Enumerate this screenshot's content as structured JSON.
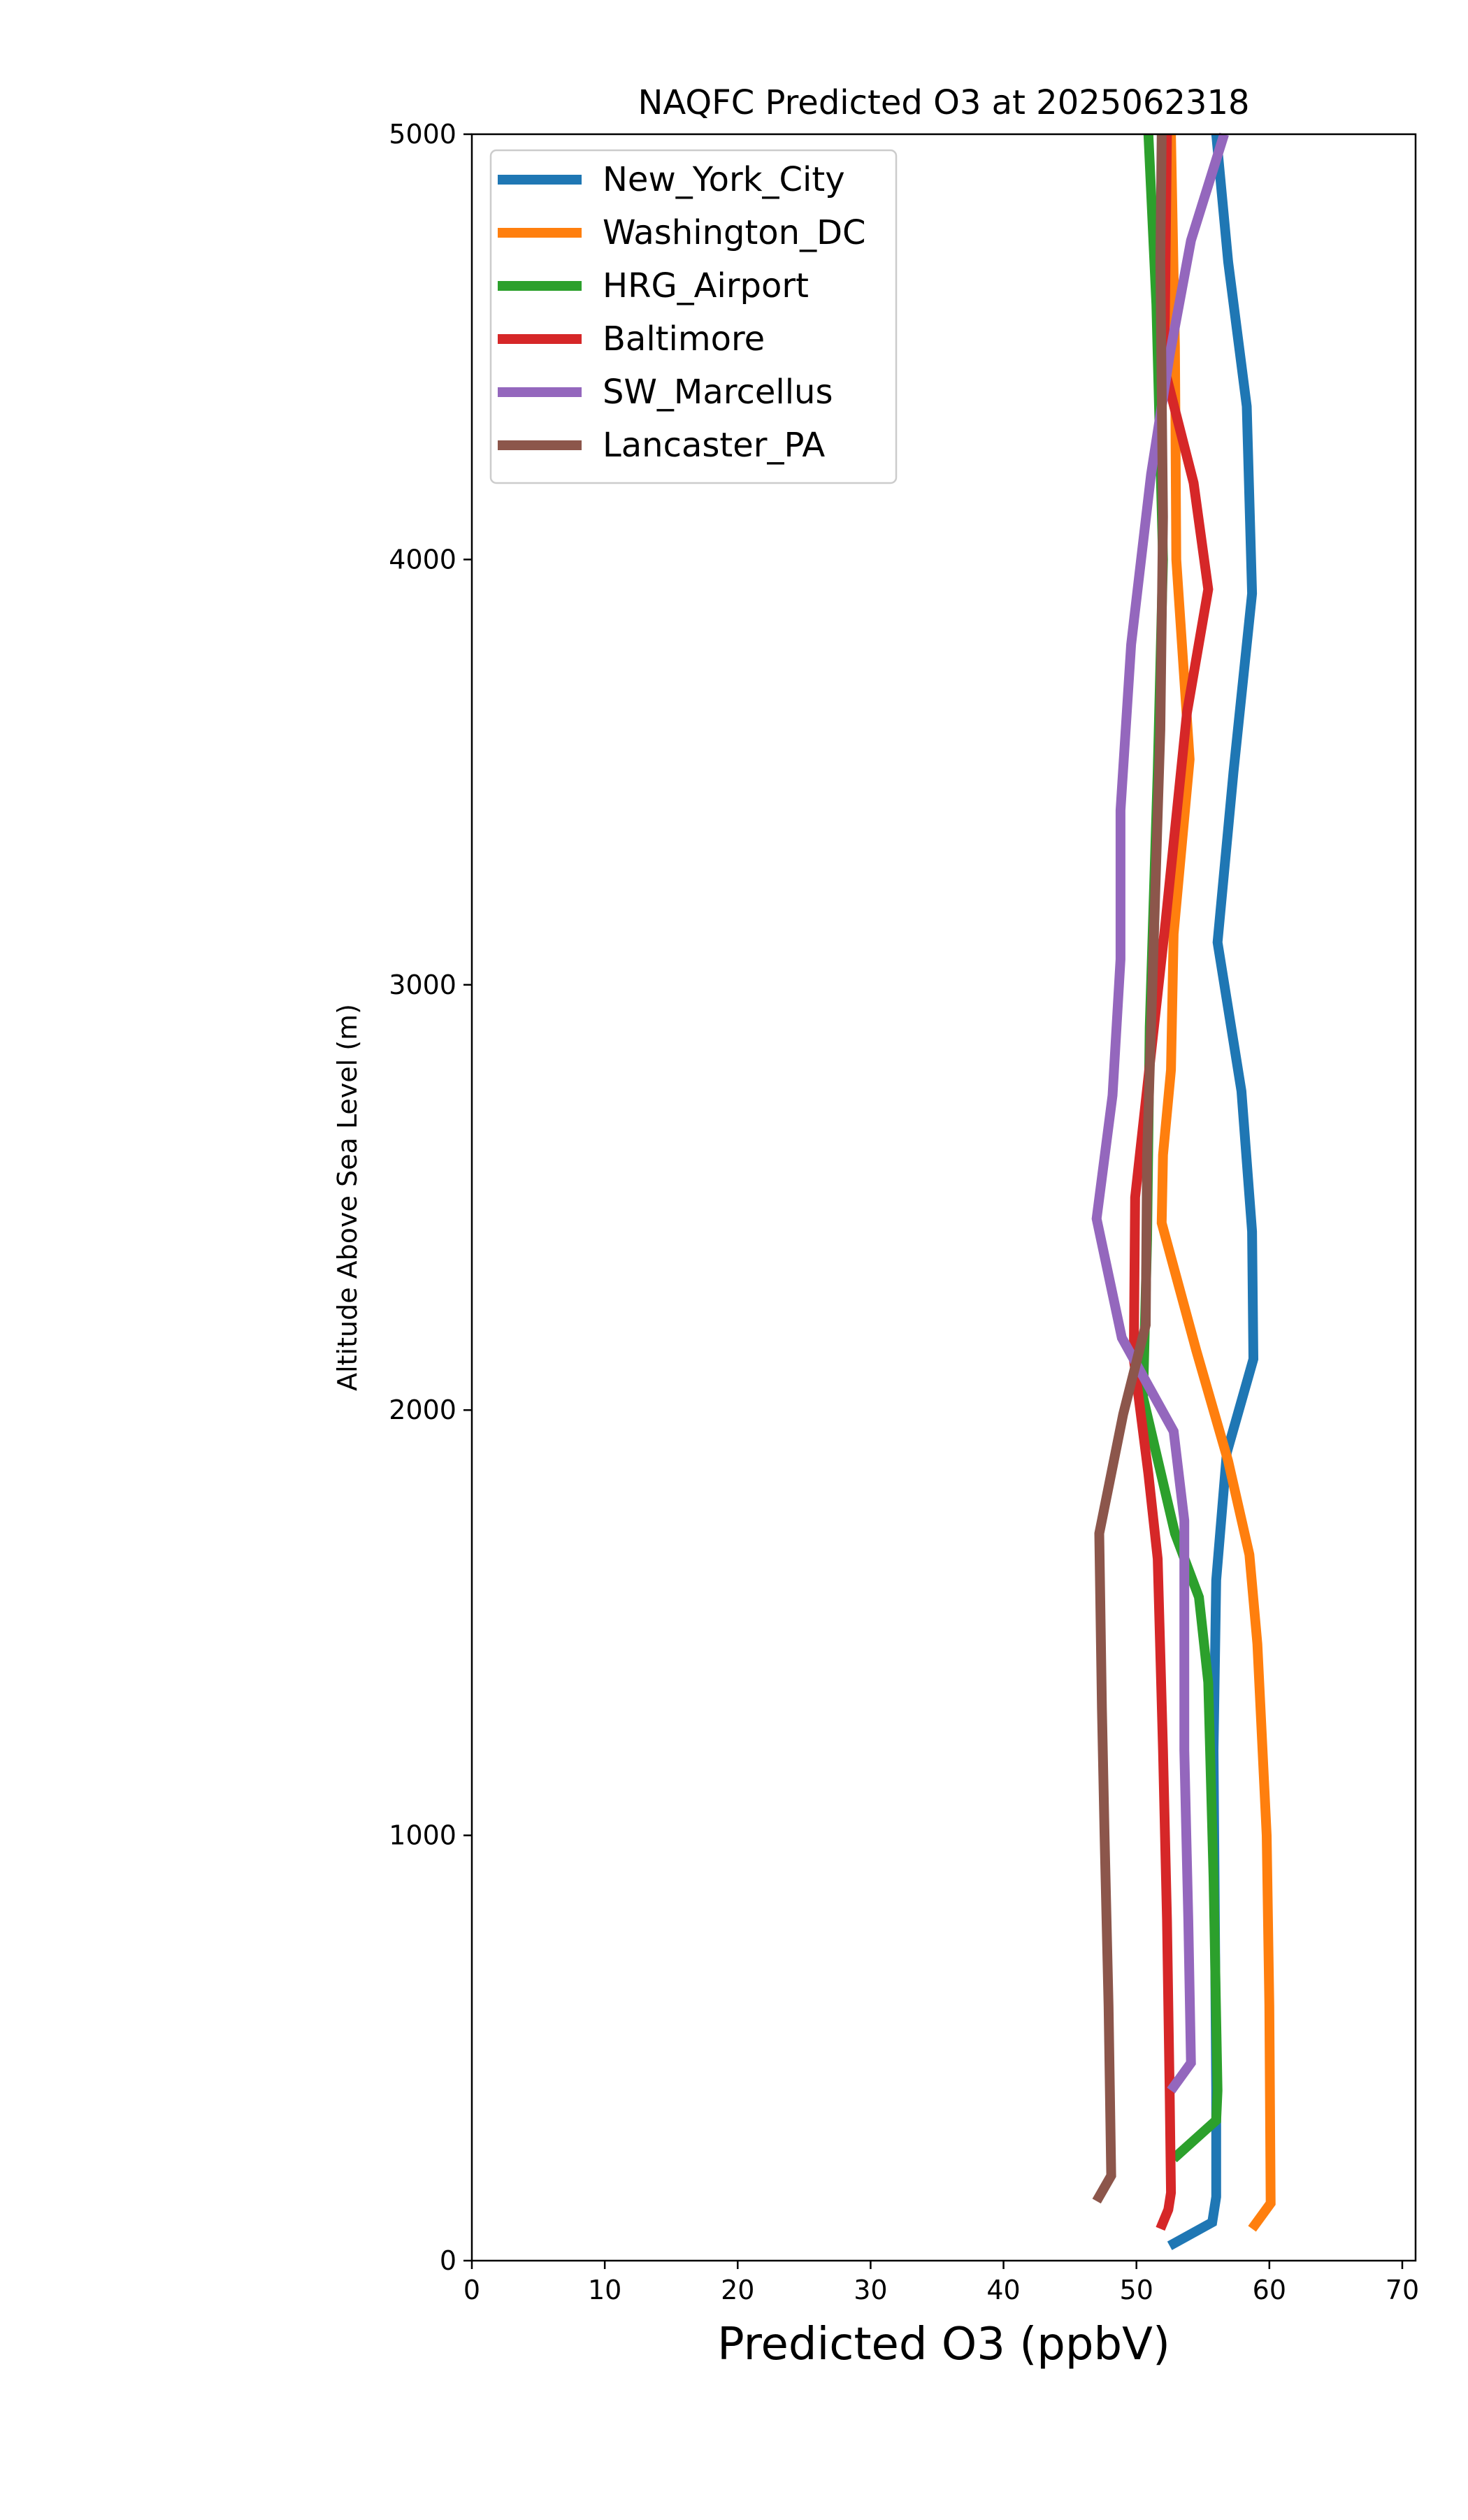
{
  "chart_data": {
    "type": "line",
    "title": "NAQFC Predicted O3 at 2025062318",
    "xlabel": "Predicted O3 (ppbV)",
    "ylabel": "Altitude Above Sea Level (m)",
    "xlim": [
      0,
      71
    ],
    "ylim": [
      0,
      5000
    ],
    "xticks": [
      0,
      10,
      20,
      30,
      40,
      50,
      60,
      70
    ],
    "yticks": [
      0,
      1000,
      2000,
      3000,
      4000,
      5000
    ],
    "grid": false,
    "legend_position": "top-left",
    "series": [
      {
        "name": "New_York_City",
        "color": "#1f77b4",
        "points": [
          [
            52.5,
            35
          ],
          [
            55.7,
            90
          ],
          [
            56.0,
            150
          ],
          [
            56.0,
            400
          ],
          [
            55.9,
            800
          ],
          [
            55.8,
            1200
          ],
          [
            56.0,
            1600
          ],
          [
            56.8,
            1900
          ],
          [
            58.8,
            2120
          ],
          [
            58.7,
            2420
          ],
          [
            57.9,
            2750
          ],
          [
            56.1,
            3100
          ],
          [
            57.3,
            3500
          ],
          [
            58.7,
            3920
          ],
          [
            58.3,
            4360
          ],
          [
            56.9,
            4700
          ],
          [
            56.0,
            5000
          ]
        ]
      },
      {
        "name": "Washington_DC",
        "color": "#ff7f0e",
        "points": [
          [
            58.7,
            75
          ],
          [
            60.1,
            135
          ],
          [
            60.0,
            600
          ],
          [
            59.8,
            1000
          ],
          [
            59.1,
            1450
          ],
          [
            58.5,
            1660
          ],
          [
            56.9,
            1880
          ],
          [
            54.5,
            2140
          ],
          [
            51.9,
            2440
          ],
          [
            52.0,
            2600
          ],
          [
            52.6,
            2800
          ],
          [
            52.8,
            3120
          ],
          [
            54.0,
            3530
          ],
          [
            53.0,
            4000
          ],
          [
            52.9,
            4500
          ],
          [
            52.6,
            5000
          ]
        ]
      },
      {
        "name": "HRG_Airport",
        "color": "#2ca02c",
        "points": [
          [
            52.8,
            240
          ],
          [
            56.0,
            330
          ],
          [
            56.1,
            400
          ],
          [
            55.8,
            900
          ],
          [
            55.4,
            1360
          ],
          [
            54.7,
            1560
          ],
          [
            52.9,
            1710
          ],
          [
            50.5,
            2030
          ],
          [
            50.8,
            2400
          ],
          [
            51.0,
            2900
          ],
          [
            51.6,
            3500
          ],
          [
            52.0,
            4000
          ],
          [
            51.5,
            4600
          ],
          [
            50.9,
            5000
          ]
        ]
      },
      {
        "name": "Baltimore",
        "color": "#d62728",
        "points": [
          [
            51.8,
            75
          ],
          [
            52.4,
            120
          ],
          [
            52.6,
            160
          ],
          [
            52.5,
            400
          ],
          [
            52.3,
            800
          ],
          [
            52.0,
            1200
          ],
          [
            51.6,
            1650
          ],
          [
            50.9,
            1850
          ],
          [
            49.8,
            2120
          ],
          [
            49.9,
            2500
          ],
          [
            52.2,
            3150
          ],
          [
            53.8,
            3640
          ],
          [
            55.4,
            3930
          ],
          [
            54.3,
            4180
          ],
          [
            52.1,
            4450
          ],
          [
            52.3,
            5000
          ]
        ]
      },
      {
        "name": "SW_Marcellus",
        "color": "#9467bd",
        "points": [
          [
            52.6,
            400
          ],
          [
            54.1,
            465
          ],
          [
            53.9,
            800
          ],
          [
            53.6,
            1200
          ],
          [
            53.6,
            1740
          ],
          [
            52.8,
            1950
          ],
          [
            48.9,
            2170
          ],
          [
            47.0,
            2450
          ],
          [
            48.2,
            2740
          ],
          [
            48.8,
            3060
          ],
          [
            48.8,
            3410
          ],
          [
            49.6,
            3800
          ],
          [
            51.1,
            4200
          ],
          [
            52.5,
            4480
          ],
          [
            54.1,
            4750
          ],
          [
            56.6,
            5000
          ]
        ]
      },
      {
        "name": "Lancaster_PA",
        "color": "#8c564b",
        "points": [
          [
            47.0,
            140
          ],
          [
            48.1,
            200
          ],
          [
            47.9,
            600
          ],
          [
            47.6,
            1000
          ],
          [
            47.4,
            1300
          ],
          [
            47.2,
            1710
          ],
          [
            49.0,
            1990
          ],
          [
            50.7,
            2200
          ],
          [
            50.8,
            2600
          ],
          [
            51.3,
            3100
          ],
          [
            51.8,
            3600
          ],
          [
            52.0,
            4100
          ],
          [
            51.8,
            4700
          ],
          [
            51.9,
            5000
          ]
        ]
      }
    ]
  }
}
